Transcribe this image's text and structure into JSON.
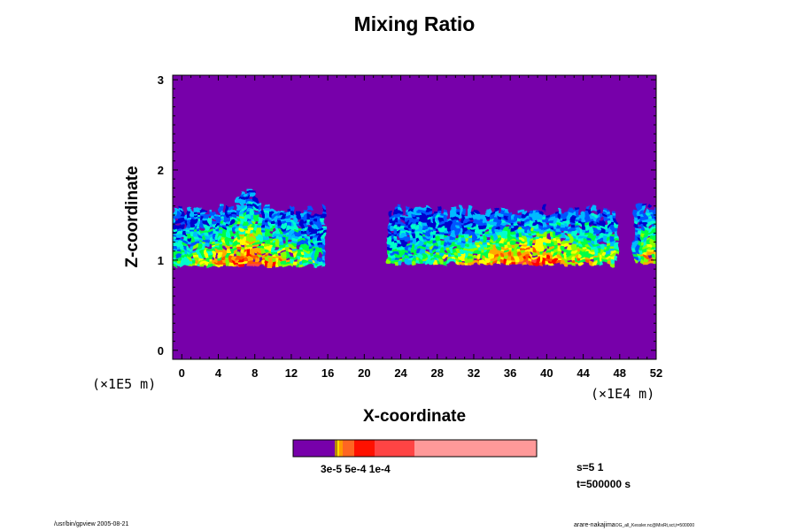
{
  "chart_data": {
    "type": "heatmap",
    "title": "Mixing Ratio",
    "xlabel": "X-coordinate",
    "ylabel": "Z-coordinate",
    "x_unit": "(×1E4 m)",
    "y_unit": "(×1E5 m)",
    "xlim": [
      -1,
      52
    ],
    "ylim": [
      -0.1,
      3.05
    ],
    "x_ticks": [
      0,
      4,
      8,
      12,
      16,
      20,
      24,
      28,
      32,
      36,
      40,
      44,
      48,
      52
    ],
    "x_tick_labels": [
      "0",
      "4",
      "8",
      "12",
      "16",
      "20",
      "24",
      "28",
      "32",
      "36",
      "40",
      "44",
      "48",
      "52"
    ],
    "y_ticks": [
      0,
      1,
      2,
      3
    ],
    "y_tick_labels": [
      "0",
      "1",
      "2",
      "3"
    ],
    "grid": false,
    "background_color": "#7700aa",
    "palette": [
      "#7700aa",
      "#0000cc",
      "#0055ff",
      "#00bbff",
      "#00ffcc",
      "#00ff44",
      "#88ff00",
      "#ffff00",
      "#ffaa00",
      "#ff5500",
      "#ff0000",
      "#ff4444",
      "#ff9999"
    ],
    "cloud_regions": [
      {
        "x_range": [
          -1,
          15.5
        ],
        "z_base": 0.95,
        "z_top": 1.55,
        "core_x": 7.0,
        "core_top": 1.75
      },
      {
        "x_range": [
          22.5,
          47.5
        ],
        "z_base": 0.97,
        "z_top": 1.55,
        "core_x": 38.0,
        "core_top": 1.55
      },
      {
        "x_range": [
          49.5,
          52
        ],
        "z_base": 0.98,
        "z_top": 1.58,
        "core_x": 51.0,
        "core_top": 1.58
      }
    ],
    "colorbar": {
      "colors": [
        "#7700aa",
        "#b8860b",
        "#ffdd00",
        "#ff9900",
        "#ff6622",
        "#ff1100",
        "#ff4444",
        "#ff9999"
      ],
      "widths": [
        47,
        3,
        2,
        4,
        13,
        23,
        45,
        138
      ],
      "labels_text": "3e-5 5e-4 1e-4"
    },
    "annotations": {
      "step": "s=5 1",
      "time": "t=500000 s"
    }
  },
  "footer": {
    "left": "/usr/bin/gpview 2005-08-21",
    "right_main": "arare-nakajima",
    "right_small": "OG_all_Kessler.nc@MixRt,sct,t=500000"
  }
}
